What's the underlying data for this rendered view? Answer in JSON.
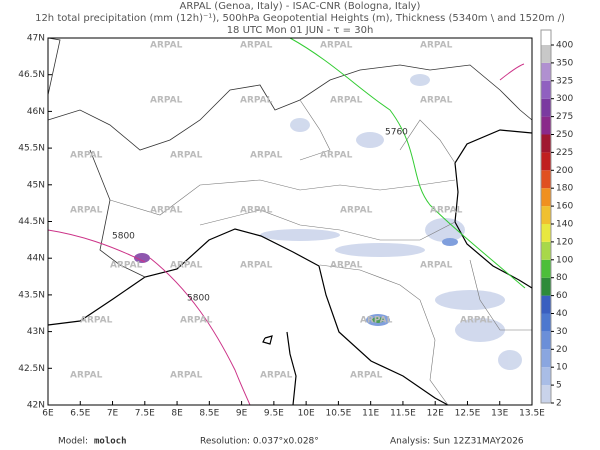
{
  "header": {
    "lines": [
      "ARPAL (Genoa, Italy)  -  ISAC-CNR (Bologna, Italy)",
      "12h total precipitation (mm (12h)⁻¹), 500hPa Geopotential Heights (m), Thickness (5340m \\ and 1520m /)",
      "18 UTC Mon 01 JUN  -  τ = 30h"
    ]
  },
  "map": {
    "watermark": "ARPAL",
    "lonlim": [
      6,
      13.5
    ],
    "latlim": [
      42,
      47
    ],
    "lon_ticks": [
      {
        "value": 6,
        "label": "6E"
      },
      {
        "value": 6.5,
        "label": "6.5E"
      },
      {
        "value": 7,
        "label": "7E"
      },
      {
        "value": 7.5,
        "label": "7.5E"
      },
      {
        "value": 8,
        "label": "8E"
      },
      {
        "value": 8.5,
        "label": "8.5E"
      },
      {
        "value": 9,
        "label": "9E"
      },
      {
        "value": 9.5,
        "label": "9.5E"
      },
      {
        "value": 10,
        "label": "10E"
      },
      {
        "value": 10.5,
        "label": "10.5E"
      },
      {
        "value": 11,
        "label": "11E"
      },
      {
        "value": 11.5,
        "label": "11.5E"
      },
      {
        "value": 12,
        "label": "12E"
      },
      {
        "value": 12.5,
        "label": "12.5E"
      },
      {
        "value": 13,
        "label": "13E"
      },
      {
        "value": 13.5,
        "label": "13.5E"
      }
    ],
    "lat_ticks": [
      {
        "value": 42,
        "label": "42N"
      },
      {
        "value": 42.5,
        "label": "42.5N"
      },
      {
        "value": 43,
        "label": "43N"
      },
      {
        "value": 43.5,
        "label": "43.5N"
      },
      {
        "value": 44,
        "label": "44N"
      },
      {
        "value": 44.5,
        "label": "44.5N"
      },
      {
        "value": 45,
        "label": "45N"
      },
      {
        "value": 45.5,
        "label": "45.5N"
      },
      {
        "value": 46,
        "label": "46N"
      },
      {
        "value": 46.5,
        "label": "46.5N"
      },
      {
        "value": 47,
        "label": "47N"
      }
    ],
    "contour_labels": [
      "5800",
      "5760",
      "5800"
    ]
  },
  "colorbar": {
    "levels": [
      2,
      5,
      10,
      20,
      30,
      40,
      60,
      80,
      100,
      120,
      140,
      160,
      180,
      200,
      225,
      250,
      275,
      300,
      325,
      350,
      400
    ],
    "colors": [
      "#c9d3ea",
      "#a9bde6",
      "#8aa6e0",
      "#6b8fd8",
      "#4d78cf",
      "#3a5fc0",
      "#2e8b3a",
      "#4cbf3a",
      "#a8d84a",
      "#e8e840",
      "#f0c030",
      "#f09020",
      "#e05020",
      "#c02020",
      "#a01830",
      "#8a2a8a",
      "#7a3aa0",
      "#9060c0",
      "#b090d0",
      "#c8c8c8"
    ]
  },
  "footer": {
    "model_label": "Model:",
    "model": "moloch",
    "resolution": "Resolution: 0.037°x0.028°",
    "analysis": "Analysis: Sun 12Z31MAY2026"
  }
}
